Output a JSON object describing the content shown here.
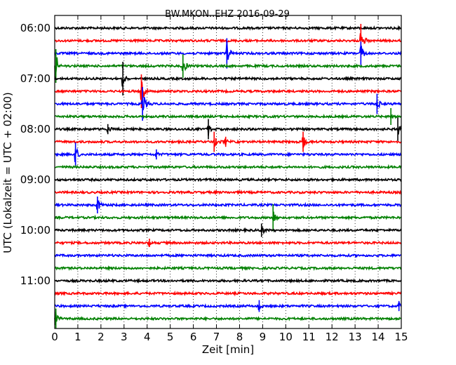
{
  "chart_data": {
    "type": "line",
    "title": "BW.MKON..EHZ 2016-09-29",
    "xlabel": "Zeit  [min]",
    "ylabel": "UTC (Lokalzeit = UTC + 02:00)",
    "xlim": [
      0,
      15
    ],
    "x_ticks": [
      "0",
      "1",
      "2",
      "3",
      "4",
      "5",
      "6",
      "7",
      "8",
      "9",
      "10",
      "11",
      "12",
      "13",
      "14",
      "15"
    ],
    "y_ticks": [
      "06:00",
      "07:00",
      "08:00",
      "09:00",
      "10:00",
      "11:00"
    ],
    "trace_interval_min": 15,
    "trace_start": "06:00",
    "trace_count": 24,
    "grid": true,
    "colors": [
      "#000000",
      "#ff0000",
      "#0000ff",
      "#008000"
    ],
    "events": [
      {
        "trace": 1,
        "t": 13.25,
        "amp": 1.0
      },
      {
        "trace": 2,
        "t": 7.45,
        "amp": 0.9
      },
      {
        "trace": 2,
        "t": 13.25,
        "amp": 0.7
      },
      {
        "trace": 3,
        "t": 0.05,
        "amp": 1.0
      },
      {
        "trace": 3,
        "t": 5.55,
        "amp": 0.7
      },
      {
        "trace": 4,
        "t": 2.95,
        "amp": 1.0
      },
      {
        "trace": 5,
        "t": 3.75,
        "amp": 1.0
      },
      {
        "trace": 6,
        "t": 3.8,
        "amp": 1.0
      },
      {
        "trace": 6,
        "t": 13.95,
        "amp": 0.6
      },
      {
        "trace": 7,
        "t": 14.55,
        "amp": 0.5
      },
      {
        "trace": 8,
        "t": 6.65,
        "amp": 0.6
      },
      {
        "trace": 8,
        "t": 14.85,
        "amp": 0.7
      },
      {
        "trace": 8,
        "t": 2.3,
        "amp": 0.3
      },
      {
        "trace": 9,
        "t": 6.9,
        "amp": 0.6
      },
      {
        "trace": 9,
        "t": 7.4,
        "amp": 0.3
      },
      {
        "trace": 9,
        "t": 10.75,
        "amp": 0.6
      },
      {
        "trace": 10,
        "t": 0.9,
        "amp": 0.7
      },
      {
        "trace": 10,
        "t": 4.4,
        "amp": 0.3
      },
      {
        "trace": 14,
        "t": 1.85,
        "amp": 0.5
      },
      {
        "trace": 15,
        "t": 9.45,
        "amp": 0.8
      },
      {
        "trace": 16,
        "t": 8.95,
        "amp": 0.4
      },
      {
        "trace": 17,
        "t": 4.1,
        "amp": 0.25
      },
      {
        "trace": 22,
        "t": 8.85,
        "amp": 0.35
      },
      {
        "trace": 22,
        "t": 14.9,
        "amp": 0.3
      },
      {
        "trace": 23,
        "t": 0.05,
        "amp": 0.6
      }
    ]
  }
}
